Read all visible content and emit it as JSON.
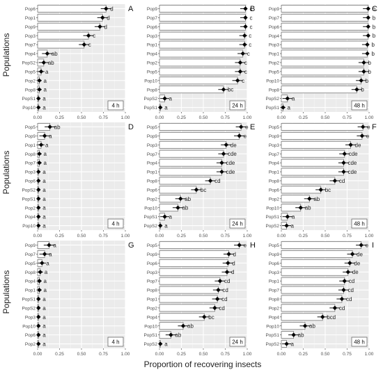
{
  "figure": {
    "ylabel": "Populations",
    "xlabel": "Proportion of recovering insects",
    "xticks": [
      "0.00",
      "0.25",
      "0.50",
      "0.75",
      "1.00"
    ]
  },
  "chart_data": [
    {
      "type": "bar",
      "panel": "A",
      "time_label": "4 h",
      "categories": [
        "Pop6",
        "Pop1",
        "Pop9",
        "Pop3",
        "Pop7",
        "Pop4",
        "PopS2",
        "Pop5",
        "Pop2",
        "Pop8",
        "PopS1",
        "Pop10"
      ],
      "values": [
        0.78,
        0.74,
        0.71,
        0.58,
        0.53,
        0.11,
        0.07,
        0.04,
        0.02,
        0.02,
        0.01,
        0.01
      ],
      "letters": [
        "d",
        "d",
        "d",
        "c",
        "c",
        "ab",
        "ab",
        "a",
        "a",
        "a",
        "a",
        "a"
      ],
      "xlim": [
        0,
        1
      ]
    },
    {
      "type": "bar",
      "panel": "B",
      "time_label": "24 h",
      "categories": [
        "Pop9",
        "Pop7",
        "Pop6",
        "Pop3",
        "Pop1",
        "Pop4",
        "Pop2",
        "Pop5",
        "Pop10",
        "Pop8",
        "PopS2",
        "PopS1"
      ],
      "values": [
        0.98,
        0.98,
        0.98,
        0.97,
        0.97,
        0.95,
        0.92,
        0.92,
        0.89,
        0.73,
        0.06,
        0.01
      ],
      "letters": [
        "c",
        "c",
        "c",
        "c",
        "c",
        "c",
        "c",
        "c",
        "c",
        "bc",
        "a",
        "a"
      ],
      "xlim": [
        0,
        1
      ]
    },
    {
      "type": "bar",
      "panel": "C",
      "time_label": "48 h",
      "categories": [
        "Pop9",
        "Pop7",
        "Pop6",
        "Pop4",
        "Pop3",
        "Pop1",
        "Pop2",
        "Pop5",
        "Pop10",
        "Pop8",
        "PopS2",
        "PopS1"
      ],
      "values": [
        0.99,
        0.99,
        0.99,
        0.99,
        0.98,
        0.98,
        0.94,
        0.94,
        0.91,
        0.86,
        0.07,
        0.02
      ],
      "letters": [
        "b",
        "b",
        "b",
        "b",
        "b",
        "b",
        "b",
        "b",
        "b",
        "b",
        "a",
        "a"
      ],
      "xlim": [
        0,
        1
      ]
    },
    {
      "type": "bar",
      "panel": "D",
      "time_label": "4 h",
      "categories": [
        "Pop5",
        "Pop9",
        "Pop1",
        "Pop8",
        "Pop7",
        "Pop3",
        "Pop6",
        "PopS2",
        "PopS1",
        "Pop2",
        "Pop4",
        "Pop10"
      ],
      "values": [
        0.14,
        0.08,
        0.04,
        0.02,
        0.02,
        0.01,
        0.01,
        0.01,
        0.01,
        0.01,
        0.01,
        0.01
      ],
      "letters": [
        "ab",
        "a",
        "a",
        "a",
        "a",
        "a",
        "a",
        "a",
        "a",
        "a",
        "a",
        "a"
      ],
      "xlim": [
        0,
        1
      ]
    },
    {
      "type": "bar",
      "panel": "E",
      "time_label": "24 h",
      "categories": [
        "Pop5",
        "Pop9",
        "Pop3",
        "Pop7",
        "Pop4",
        "Pop1",
        "Pop8",
        "Pop6",
        "Pop2",
        "Pop10",
        "PopS1",
        "PopS2"
      ],
      "values": [
        0.93,
        0.91,
        0.76,
        0.73,
        0.71,
        0.71,
        0.58,
        0.42,
        0.24,
        0.21,
        0.06,
        0.01
      ],
      "letters": [
        "e",
        "e",
        "de",
        "cde",
        "cde",
        "cde",
        "cd",
        "bc",
        "ab",
        "ab",
        "a",
        "a"
      ],
      "xlim": [
        0,
        1
      ]
    },
    {
      "type": "bar",
      "panel": "F",
      "time_label": "48 h",
      "categories": [
        "Pop5",
        "Pop9",
        "Pop3",
        "Pop7",
        "Pop4",
        "Pop1",
        "Pop8",
        "Pop6",
        "Pop2",
        "Pop10",
        "PopS1",
        "PopS2"
      ],
      "values": [
        0.93,
        0.92,
        0.79,
        0.72,
        0.71,
        0.71,
        0.61,
        0.45,
        0.32,
        0.22,
        0.07,
        0.06
      ],
      "letters": [
        "e",
        "e",
        "de",
        "cde",
        "cde",
        "cde",
        "cd",
        "bc",
        "ab",
        "ab",
        "a",
        "a"
      ],
      "xlim": [
        0,
        1
      ]
    },
    {
      "type": "bar",
      "panel": "G",
      "time_label": "4 h",
      "categories": [
        "Pop9",
        "Pop7",
        "Pop5",
        "Pop8",
        "Pop4",
        "Pop1",
        "PopS1",
        "PopS2",
        "Pop3",
        "Pop10",
        "Pop6",
        "Pop2"
      ],
      "values": [
        0.13,
        0.08,
        0.05,
        0.03,
        0.02,
        0.02,
        0.01,
        0.01,
        0.01,
        0.01,
        0.01,
        0.01
      ],
      "letters": [
        "a",
        "a",
        "a",
        "a",
        "a",
        "a",
        "a",
        "a",
        "a",
        "a",
        "a",
        "a"
      ],
      "xlim": [
        0,
        1
      ]
    },
    {
      "type": "bar",
      "panel": "H",
      "time_label": "24 h",
      "categories": [
        "Pop5",
        "Pop9",
        "Pop6",
        "Pop3",
        "Pop7",
        "Pop8",
        "Pop1",
        "Pop2",
        "Pop4",
        "Pop10",
        "PopS1",
        "PopS2"
      ],
      "values": [
        0.91,
        0.79,
        0.78,
        0.77,
        0.69,
        0.67,
        0.66,
        0.63,
        0.51,
        0.27,
        0.13,
        0.01
      ],
      "letters": [
        "e",
        "d",
        "d",
        "d",
        "cd",
        "cd",
        "cd",
        "cd",
        "bc",
        "ab",
        "ab",
        "a"
      ],
      "xlim": [
        0,
        1
      ]
    },
    {
      "type": "bar",
      "panel": "I",
      "time_label": "48 h",
      "categories": [
        "Pop5",
        "Pop9",
        "Pop6",
        "Pop3",
        "Pop1",
        "Pop7",
        "Pop8",
        "Pop2",
        "Pop4",
        "Pop10",
        "PopS1",
        "PopS2"
      ],
      "values": [
        0.91,
        0.81,
        0.78,
        0.76,
        0.72,
        0.71,
        0.69,
        0.61,
        0.47,
        0.27,
        0.14,
        0.06
      ],
      "letters": [
        "e",
        "de",
        "de",
        "de",
        "cd",
        "cd",
        "cd",
        "cd",
        "bcd",
        "ab",
        "ab",
        "a"
      ],
      "xlim": [
        0,
        1
      ]
    }
  ]
}
